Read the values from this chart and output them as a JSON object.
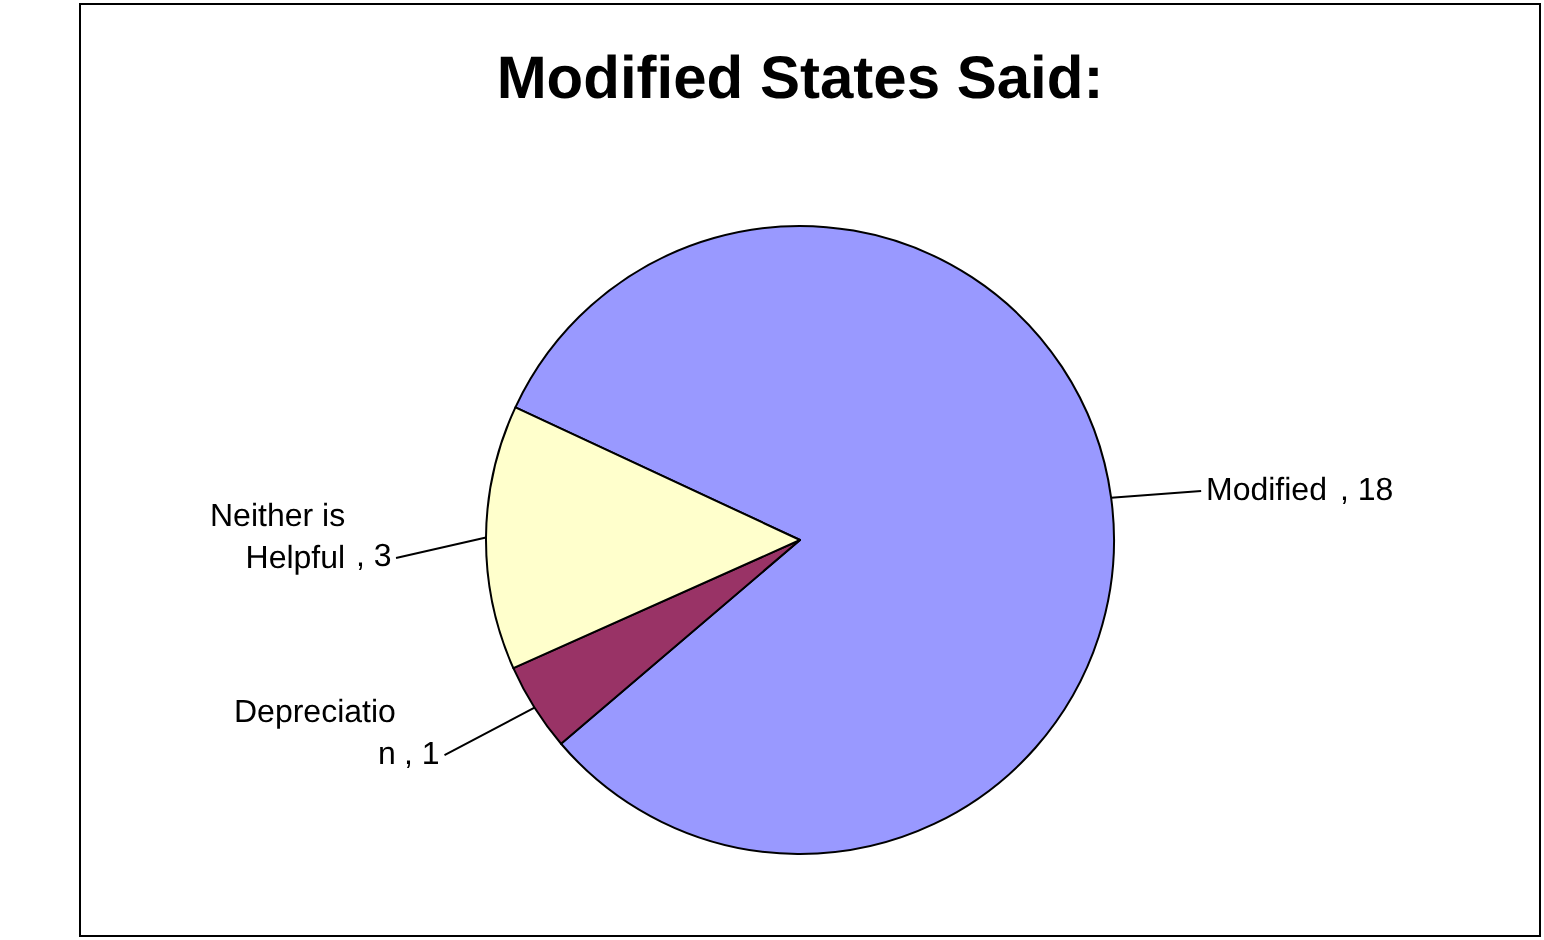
{
  "chart_data": {
    "type": "pie",
    "title": "Modified States Said:",
    "categories": [
      "Modified ",
      "Depreciatio\nn",
      "Neither is\nHelpful"
    ],
    "values": [
      18,
      1,
      3
    ],
    "colors": [
      "#9999ff",
      "#993366",
      "#ffffcc"
    ],
    "value_labels": [
      ", 18",
      ", 1",
      ", 3"
    ],
    "legend": false
  }
}
